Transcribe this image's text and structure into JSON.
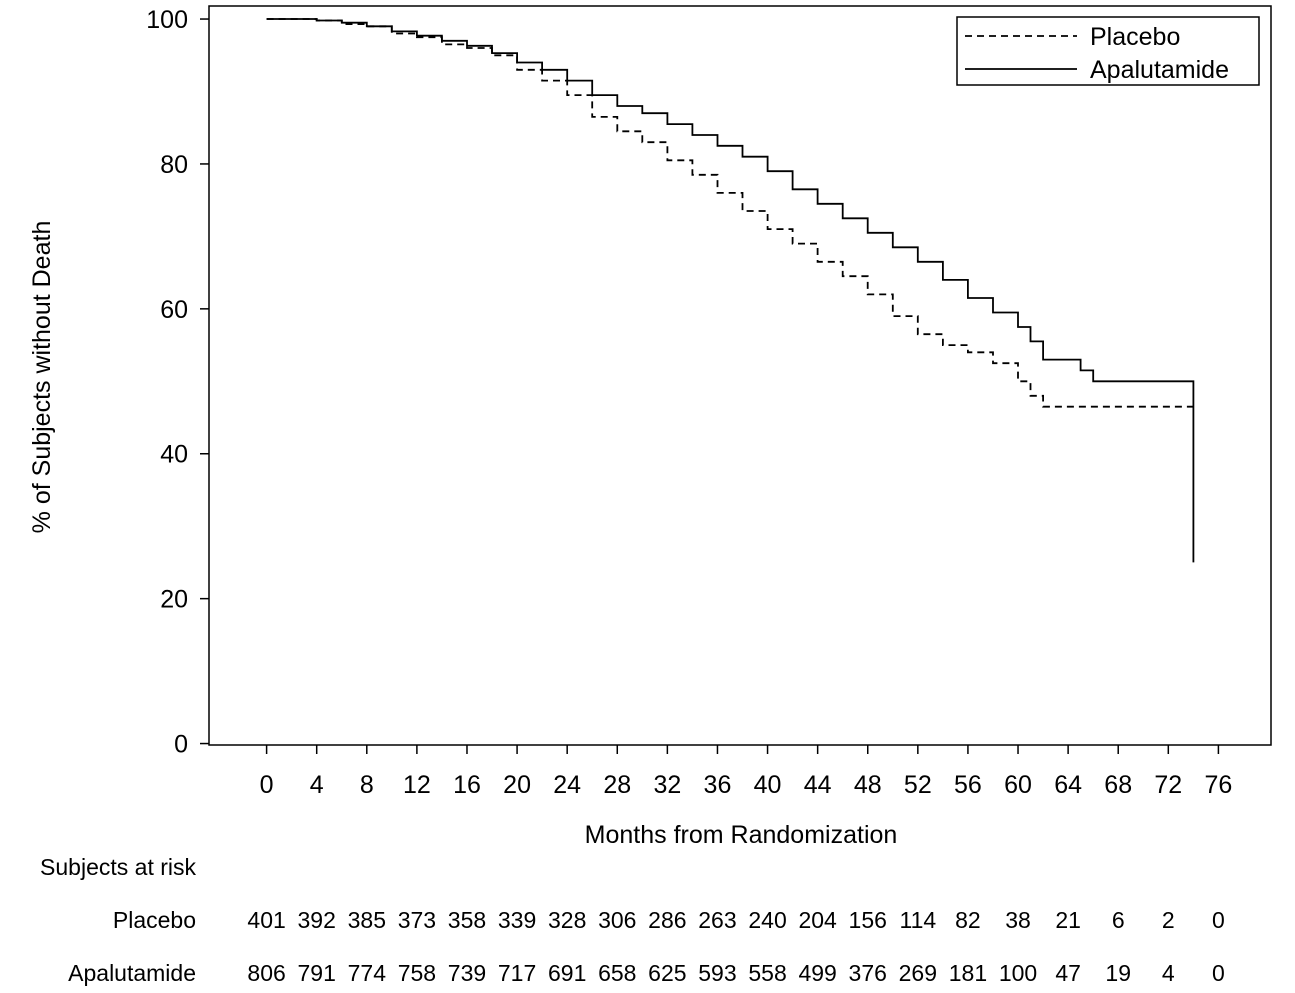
{
  "chart_data": {
    "type": "line",
    "xlabel": "Months from Randomization",
    "ylabel": "% of Subjects without Death",
    "xlim": [
      -4.6,
      80.2
    ],
    "ylim": [
      -0.2,
      101.8
    ],
    "x_ticks": [
      0,
      4,
      8,
      12,
      16,
      20,
      24,
      28,
      32,
      36,
      40,
      44,
      48,
      52,
      56,
      60,
      64,
      68,
      72,
      76
    ],
    "y_ticks": [
      0,
      20,
      40,
      60,
      80,
      100
    ],
    "grid": false,
    "legend_position": "top-right",
    "series": [
      {
        "name": "Placebo",
        "line_style": "dashed",
        "color": "#000000",
        "points": [
          [
            0,
            100
          ],
          [
            2,
            100
          ],
          [
            4,
            99.8
          ],
          [
            6,
            99.3
          ],
          [
            8,
            99.0
          ],
          [
            10,
            98.0
          ],
          [
            12,
            97.5
          ],
          [
            14,
            96.5
          ],
          [
            16,
            96.0
          ],
          [
            18,
            95.0
          ],
          [
            20,
            93.0
          ],
          [
            22,
            91.5
          ],
          [
            24,
            89.5
          ],
          [
            26,
            86.5
          ],
          [
            28,
            84.5
          ],
          [
            30,
            83.0
          ],
          [
            32,
            80.5
          ],
          [
            34,
            78.5
          ],
          [
            36,
            76.0
          ],
          [
            38,
            73.5
          ],
          [
            40,
            71.0
          ],
          [
            42,
            69.0
          ],
          [
            44,
            66.5
          ],
          [
            46,
            64.5
          ],
          [
            48,
            62.0
          ],
          [
            50,
            59.0
          ],
          [
            52,
            56.5
          ],
          [
            54,
            55.0
          ],
          [
            56,
            54.0
          ],
          [
            58,
            52.5
          ],
          [
            60,
            50.0
          ],
          [
            61,
            48.0
          ],
          [
            62,
            46.5
          ],
          [
            74,
            46.5
          ]
        ]
      },
      {
        "name": "Apalutamide",
        "line_style": "solid",
        "color": "#000000",
        "points": [
          [
            0,
            100
          ],
          [
            2,
            100
          ],
          [
            4,
            99.8
          ],
          [
            6,
            99.5
          ],
          [
            8,
            99.0
          ],
          [
            10,
            98.3
          ],
          [
            12,
            97.7
          ],
          [
            14,
            97.0
          ],
          [
            16,
            96.3
          ],
          [
            18,
            95.3
          ],
          [
            20,
            94.0
          ],
          [
            22,
            93.0
          ],
          [
            24,
            91.5
          ],
          [
            26,
            89.5
          ],
          [
            28,
            88.0
          ],
          [
            30,
            87.0
          ],
          [
            32,
            85.5
          ],
          [
            34,
            84.0
          ],
          [
            36,
            82.5
          ],
          [
            38,
            81.0
          ],
          [
            40,
            79.0
          ],
          [
            42,
            76.5
          ],
          [
            44,
            74.5
          ],
          [
            46,
            72.5
          ],
          [
            48,
            70.5
          ],
          [
            50,
            68.5
          ],
          [
            52,
            66.5
          ],
          [
            54,
            64.0
          ],
          [
            56,
            61.5
          ],
          [
            58,
            59.5
          ],
          [
            60,
            57.5
          ],
          [
            61,
            55.5
          ],
          [
            62,
            53.0
          ],
          [
            65,
            53.0
          ],
          [
            65,
            51.5
          ],
          [
            66,
            51.5
          ],
          [
            66,
            50.0
          ],
          [
            74,
            50.0
          ],
          [
            74,
            25.0
          ]
        ]
      }
    ]
  },
  "risk_table": {
    "header": "Subjects at risk",
    "rows": [
      {
        "label": "Placebo",
        "values": [
          "401",
          "392",
          "385",
          "373",
          "358",
          "339",
          "328",
          "306",
          "286",
          "263",
          "240",
          "204",
          "156",
          "114",
          "82",
          "38",
          "21",
          "6",
          "2",
          "0"
        ]
      },
      {
        "label": "Apalutamide",
        "values": [
          "806",
          "791",
          "774",
          "758",
          "739",
          "717",
          "691",
          "658",
          "625",
          "593",
          "558",
          "499",
          "376",
          "269",
          "181",
          "100",
          "47",
          "19",
          "4",
          "0"
        ]
      }
    ]
  }
}
